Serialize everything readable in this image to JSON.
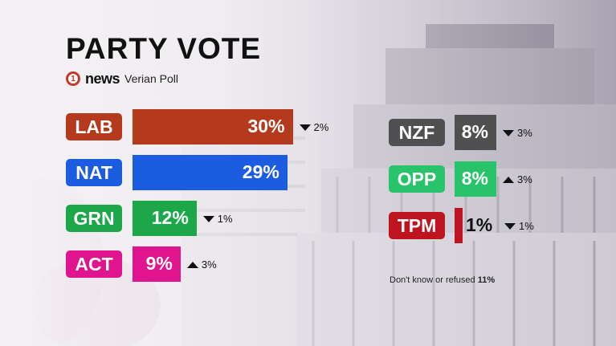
{
  "title": "PARTY VOTE",
  "brand": {
    "logo_text": "news",
    "logo_mark": "1",
    "poll_name": "Verian Poll"
  },
  "colors": {
    "LAB": "#b5391d",
    "NAT": "#1c5ce0",
    "GRN": "#1ba74a",
    "ACT": "#e0148e",
    "NZF": "#505052",
    "OPP": "#28c36b",
    "TPM": "#be1420"
  },
  "chart_data": {
    "type": "bar",
    "categories": [
      "LAB",
      "NAT",
      "GRN",
      "ACT",
      "NZF",
      "OPP",
      "TPM"
    ],
    "values": [
      30,
      29,
      12,
      9,
      8,
      8,
      1
    ],
    "value_labels": [
      "30%",
      "29%",
      "12%",
      "9%",
      "8%",
      "8%",
      "1%"
    ],
    "change_direction": [
      "down",
      "none",
      "down",
      "up",
      "down",
      "up",
      "down"
    ],
    "change_labels": [
      "2%",
      "",
      "1%",
      "3%",
      "3%",
      "3%",
      "1%"
    ],
    "title": "PARTY VOTE"
  },
  "footnote": {
    "text": "Don't know or refused",
    "value": "11%"
  }
}
